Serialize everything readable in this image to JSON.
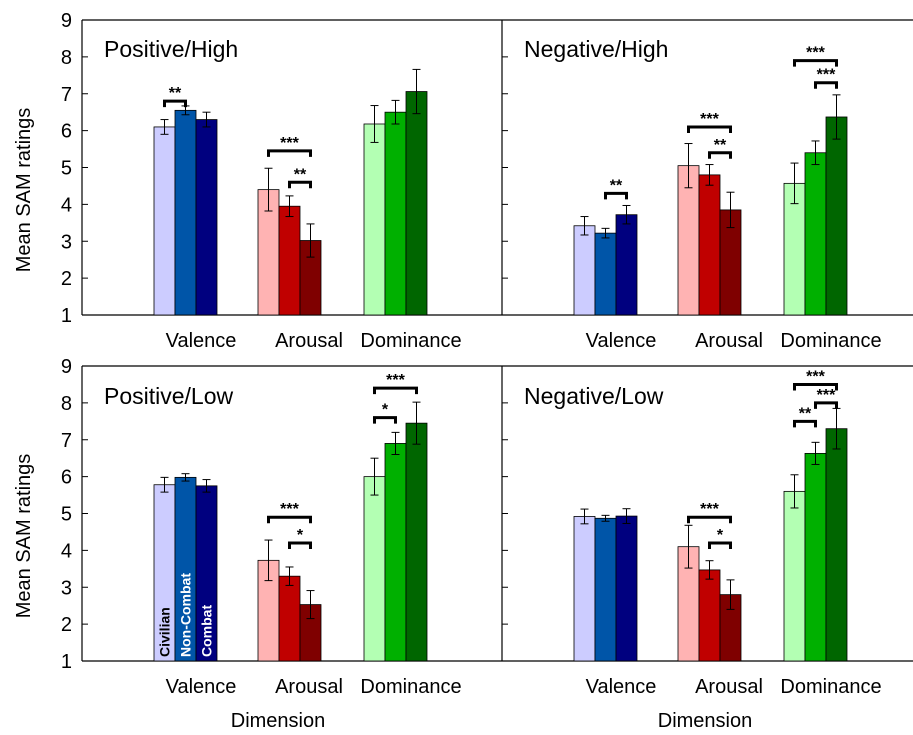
{
  "chart_data": {
    "type": "bar",
    "ylabel": "Mean SAM ratings",
    "xlabel": "Dimension",
    "ylim": [
      1,
      9
    ],
    "yticks": [
      1,
      2,
      3,
      4,
      5,
      6,
      7,
      8,
      9
    ],
    "groups": [
      "Civilian",
      "Non-Combat",
      "Combat"
    ],
    "categories": [
      "Valence",
      "Arousal",
      "Dominance"
    ],
    "colors": {
      "Valence": [
        "#ccccff",
        "#0055a8",
        "#00007f"
      ],
      "Arousal": [
        "#ffb3b3",
        "#c00000",
        "#7f0000"
      ],
      "Dominance": [
        "#b3ffb3",
        "#00b000",
        "#006600"
      ]
    },
    "panels": [
      {
        "title": "Positive/High",
        "values": [
          [
            6.1,
            6.55,
            6.3
          ],
          [
            4.4,
            3.95,
            3.02
          ],
          [
            6.18,
            6.5,
            7.06
          ]
        ],
        "errors": [
          [
            0.2,
            0.12,
            0.2
          ],
          [
            0.58,
            0.28,
            0.45
          ],
          [
            0.5,
            0.32,
            0.6
          ]
        ],
        "significance": [
          {
            "category": 0,
            "from": 0,
            "to": 1,
            "label": "**",
            "level": 6.8
          },
          {
            "category": 1,
            "from": 0,
            "to": 2,
            "label": "***",
            "level": 5.45
          },
          {
            "category": 1,
            "from": 1,
            "to": 2,
            "label": "**",
            "level": 4.6
          }
        ]
      },
      {
        "title": "Negative/High",
        "values": [
          [
            3.42,
            3.22,
            3.72
          ],
          [
            5.05,
            4.8,
            3.85
          ],
          [
            4.57,
            5.4,
            6.37
          ]
        ],
        "errors": [
          [
            0.25,
            0.13,
            0.25
          ],
          [
            0.6,
            0.28,
            0.48
          ],
          [
            0.55,
            0.32,
            0.6
          ]
        ],
        "significance": [
          {
            "category": 0,
            "from": 1,
            "to": 2,
            "label": "**",
            "level": 4.3
          },
          {
            "category": 1,
            "from": 0,
            "to": 2,
            "label": "***",
            "level": 6.1
          },
          {
            "category": 1,
            "from": 1,
            "to": 2,
            "label": "**",
            "level": 5.4
          },
          {
            "category": 2,
            "from": 0,
            "to": 2,
            "label": "***",
            "level": 7.9
          },
          {
            "category": 2,
            "from": 1,
            "to": 2,
            "label": "***",
            "level": 7.3
          }
        ]
      },
      {
        "title": "Positive/Low",
        "values": [
          [
            5.78,
            5.98,
            5.75
          ],
          [
            3.73,
            3.3,
            2.53
          ],
          [
            6.0,
            6.9,
            7.45
          ]
        ],
        "errors": [
          [
            0.2,
            0.1,
            0.17
          ],
          [
            0.55,
            0.25,
            0.38
          ],
          [
            0.5,
            0.3,
            0.57
          ]
        ],
        "significance": [
          {
            "category": 1,
            "from": 0,
            "to": 2,
            "label": "***",
            "level": 4.9
          },
          {
            "category": 1,
            "from": 1,
            "to": 2,
            "label": "*",
            "level": 4.2
          },
          {
            "category": 2,
            "from": 0,
            "to": 1,
            "label": "*",
            "level": 7.6
          },
          {
            "category": 2,
            "from": 0,
            "to": 2,
            "label": "***",
            "level": 8.4
          }
        ]
      },
      {
        "title": "Negative/Low",
        "values": [
          [
            4.92,
            4.87,
            4.93
          ],
          [
            4.1,
            3.47,
            2.8
          ],
          [
            5.6,
            6.63,
            7.3
          ]
        ],
        "errors": [
          [
            0.2,
            0.08,
            0.2
          ],
          [
            0.58,
            0.25,
            0.4
          ],
          [
            0.45,
            0.3,
            0.55
          ]
        ],
        "significance": [
          {
            "category": 1,
            "from": 0,
            "to": 2,
            "label": "***",
            "level": 4.9
          },
          {
            "category": 1,
            "from": 1,
            "to": 2,
            "label": "*",
            "level": 4.2
          },
          {
            "category": 2,
            "from": 0,
            "to": 1,
            "label": "**",
            "level": 7.5
          },
          {
            "category": 2,
            "from": 0,
            "to": 2,
            "label": "***",
            "level": 8.5
          },
          {
            "category": 2,
            "from": 1,
            "to": 2,
            "label": "***",
            "level": 8.0
          }
        ]
      }
    ]
  }
}
